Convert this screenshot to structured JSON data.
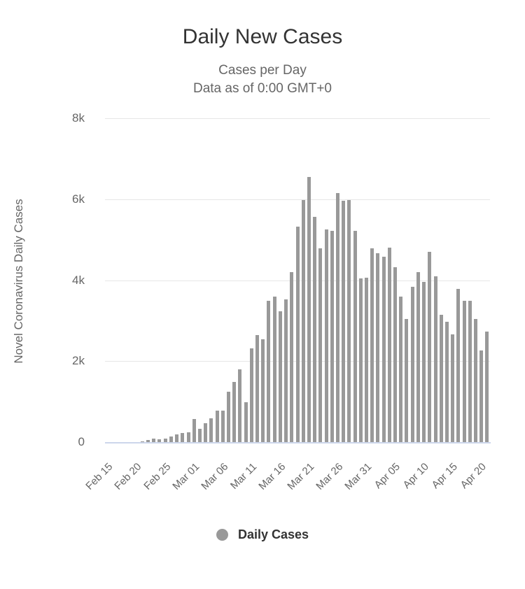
{
  "title": "Daily New Cases",
  "subtitle_line1": "Cases per Day",
  "subtitle_line2": "Data as of 0:00 GMT+0",
  "y_axis_title": "Novel Coronavirus Daily Cases",
  "legend": {
    "label": "Daily Cases",
    "marker_color": "#999999"
  },
  "colors": {
    "bar": "#999999",
    "gridline": "#e6e6e6",
    "axis_line": "#ccd6eb",
    "title_text": "#333333",
    "subtitle_text": "#666666",
    "tick_text": "#666666",
    "legend_text": "#333333"
  },
  "chart_data": {
    "type": "bar",
    "title": "Daily New Cases",
    "subtitle": [
      "Cases per Day",
      "Data as of 0:00 GMT+0"
    ],
    "ylabel": "Novel Coronavirus Daily Cases",
    "xlabel": "",
    "ylim": [
      0,
      8000
    ],
    "grid": "horizontal",
    "legend_position": "bottom",
    "legend_entries": [
      "Daily Cases"
    ],
    "y_ticks": [
      {
        "value": 0,
        "label": "0"
      },
      {
        "value": 2000,
        "label": "2k"
      },
      {
        "value": 4000,
        "label": "4k"
      },
      {
        "value": 6000,
        "label": "6k"
      },
      {
        "value": 8000,
        "label": "8k"
      }
    ],
    "x_tick_every": 5,
    "x_tick_labels": [
      "Feb 15",
      "Feb 20",
      "Feb 25",
      "Mar 01",
      "Mar 06",
      "Mar 11",
      "Mar 16",
      "Mar 21",
      "Mar 26",
      "Mar 31",
      "Apr 05",
      "Apr 10",
      "Apr 15",
      "Apr 20"
    ],
    "x": [
      "Feb 15",
      "Feb 16",
      "Feb 17",
      "Feb 18",
      "Feb 19",
      "Feb 20",
      "Feb 21",
      "Feb 22",
      "Feb 23",
      "Feb 24",
      "Feb 25",
      "Feb 26",
      "Feb 27",
      "Feb 28",
      "Feb 29",
      "Mar 01",
      "Mar 02",
      "Mar 03",
      "Mar 04",
      "Mar 05",
      "Mar 06",
      "Mar 07",
      "Mar 08",
      "Mar 09",
      "Mar 10",
      "Mar 11",
      "Mar 12",
      "Mar 13",
      "Mar 14",
      "Mar 15",
      "Mar 16",
      "Mar 17",
      "Mar 18",
      "Mar 19",
      "Mar 20",
      "Mar 21",
      "Mar 22",
      "Mar 23",
      "Mar 24",
      "Mar 25",
      "Mar 26",
      "Mar 27",
      "Mar 28",
      "Mar 29",
      "Mar 30",
      "Mar 31",
      "Apr 01",
      "Apr 02",
      "Apr 03",
      "Apr 04",
      "Apr 05",
      "Apr 06",
      "Apr 07",
      "Apr 08",
      "Apr 09",
      "Apr 10",
      "Apr 11",
      "Apr 12",
      "Apr 13",
      "Apr 14",
      "Apr 15",
      "Apr 16",
      "Apr 17",
      "Apr 18",
      "Apr 19",
      "Apr 20",
      "Apr 21"
    ],
    "values": [
      0,
      0,
      0,
      0,
      0,
      3,
      17,
      59,
      78,
      72,
      94,
      131,
      185,
      233,
      239,
      573,
      335,
      466,
      587,
      769,
      778,
      1247,
      1492,
      1797,
      977,
      2313,
      2651,
      2547,
      3497,
      3590,
      3233,
      3526,
      4207,
      5322,
      5986,
      6557,
      5560,
      4789,
      5249,
      5210,
      6153,
      5959,
      5974,
      5217,
      4050,
      4053,
      4782,
      4668,
      4585,
      4805,
      4316,
      3599,
      3039,
      3836,
      4204,
      3951,
      4694,
      4092,
      3153,
      2972,
      2667,
      3786,
      3493,
      3491,
      3047,
      2256,
      2729
    ],
    "series": [
      {
        "name": "Daily Cases",
        "values": [
          0,
          0,
          0,
          0,
          0,
          3,
          17,
          59,
          78,
          72,
          94,
          131,
          185,
          233,
          239,
          573,
          335,
          466,
          587,
          769,
          778,
          1247,
          1492,
          1797,
          977,
          2313,
          2651,
          2547,
          3497,
          3590,
          3233,
          3526,
          4207,
          5322,
          5986,
          6557,
          5560,
          4789,
          5249,
          5210,
          6153,
          5959,
          5974,
          5217,
          4050,
          4053,
          4782,
          4668,
          4585,
          4805,
          4316,
          3599,
          3039,
          3836,
          4204,
          3951,
          4694,
          4092,
          3153,
          2972,
          2667,
          3786,
          3493,
          3491,
          3047,
          2256,
          2729
        ]
      }
    ]
  }
}
